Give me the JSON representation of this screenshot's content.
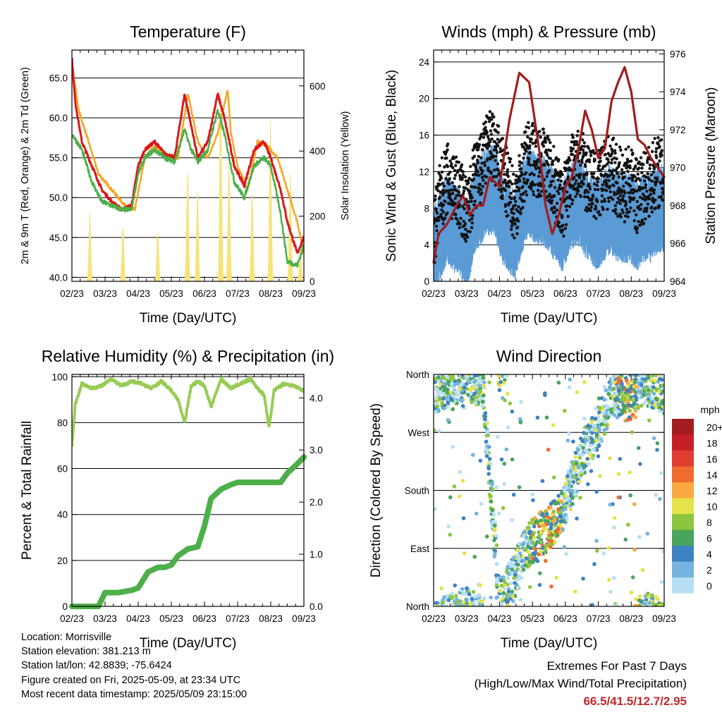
{
  "chart_data": [
    {
      "type": "line",
      "title": "Temperature (F)",
      "xlabel": "Time (Day/UTC)",
      "ylabel": "2m & 9m T (Red, Orange) & 2m Td (Green)",
      "ylabel_right": "Solar Insolation (Yellow)",
      "x_ticks": [
        "02/23",
        "03/23",
        "04/23",
        "05/23",
        "06/23",
        "07/23",
        "08/23",
        "09/23"
      ],
      "y_ticks": [
        "40.0",
        "45.0",
        "50.0",
        "55.0",
        "60.0",
        "65.0"
      ],
      "y2_ticks": [
        "0",
        "200",
        "400",
        "600"
      ],
      "ylim": [
        39.5,
        68.5
      ],
      "y2lim": [
        0,
        710
      ],
      "grid": "horizontal",
      "series": [
        {
          "color": "#f5a623",
          "x": [
            0,
            0.2,
            0.5,
            0.8,
            1.2,
            1.6,
            1.9,
            2.2,
            2.5,
            2.8,
            3.2,
            3.5,
            3.8,
            4.1,
            4.4,
            4.7,
            4.8,
            5.0,
            5.3,
            5.6,
            5.9,
            6.2,
            6.5,
            6.8,
            7.0
          ],
          "values": [
            67,
            61,
            57,
            53,
            51,
            49,
            48.5,
            55,
            56.5,
            55.5,
            55,
            63,
            57,
            55,
            58,
            63.5,
            58,
            54,
            51,
            57,
            56.5,
            55,
            51,
            47,
            43
          ]
        },
        {
          "color": "#d7191c",
          "x": [
            0,
            0.1,
            0.3,
            0.6,
            0.9,
            1.2,
            1.5,
            1.8,
            2.0,
            2.2,
            2.5,
            2.8,
            3.1,
            3.4,
            3.6,
            3.8,
            4.1,
            4.4,
            4.6,
            4.9,
            5.2,
            5.5,
            5.8,
            6.0,
            6.3,
            6.5,
            6.8,
            7.0
          ],
          "values": [
            67.5,
            62,
            57,
            54,
            51,
            49.5,
            48.5,
            49,
            54,
            56,
            57,
            55.5,
            55,
            63,
            59,
            55,
            57,
            63,
            60,
            54,
            51.5,
            56,
            57,
            55,
            51,
            47,
            43,
            45
          ]
        },
        {
          "color": "#4daf4a",
          "x": [
            0,
            0.3,
            0.6,
            0.9,
            1.2,
            1.5,
            1.8,
            2.0,
            2.2,
            2.5,
            2.8,
            3.1,
            3.4,
            3.6,
            3.8,
            4.1,
            4.4,
            4.6,
            4.9,
            5.2,
            5.5,
            5.8,
            6.0,
            6.3,
            6.5,
            6.8,
            7.0
          ],
          "values": [
            58,
            56,
            52,
            49.5,
            49,
            48.5,
            48.5,
            53,
            55,
            56,
            55,
            54.5,
            58.5,
            56,
            54.5,
            56,
            61,
            58,
            52,
            50,
            54,
            55,
            54,
            48,
            42,
            41.5,
            44
          ]
        }
      ],
      "insolation": {
        "color": "#f6e37a",
        "peaks_day": [
          0.5,
          1.5,
          2.55,
          3.45,
          3.75,
          4.45,
          4.7,
          5.4,
          5.95,
          6.55,
          6.85
        ],
        "peaks_value": [
          230,
          200,
          180,
          400,
          300,
          700,
          450,
          300,
          560,
          400,
          120
        ]
      }
    },
    {
      "type": "scatter",
      "title": "Winds (mph) & Pressure (mb)",
      "xlabel": "Time (Day/UTC)",
      "ylabel": "Sonic Wind & Gust (Blue, Black)",
      "ylabel_right": "Station Pressure (Maroon)",
      "x_ticks": [
        "02/23",
        "03/23",
        "04/23",
        "05/23",
        "06/23",
        "07/23",
        "08/23",
        "09/23"
      ],
      "y_ticks": [
        "0",
        "4",
        "8",
        "12",
        "16",
        "20",
        "24"
      ],
      "y2_ticks": [
        "964",
        "966",
        "968",
        "970",
        "972",
        "974",
        "976"
      ],
      "ylim": [
        0,
        25.3
      ],
      "y2lim": [
        964,
        976.2
      ],
      "grid": "horizontal",
      "pressure": {
        "color": "#a31d1d",
        "x": [
          0,
          0.15,
          0.4,
          0.7,
          0.9,
          1.1,
          1.3,
          1.5,
          1.7,
          2.0,
          2.3,
          2.6,
          2.9,
          3.2,
          3.4,
          3.6,
          3.8,
          4.0,
          4.2,
          4.4,
          4.6,
          4.8,
          5.0,
          5.2,
          5.4,
          5.6,
          5.8,
          6.0,
          6.2,
          6.4,
          6.6,
          6.8,
          7.0
        ],
        "values": [
          965,
          966.5,
          967,
          968,
          968.5,
          967.5,
          968,
          968,
          969.5,
          969,
          972.5,
          975,
          974.5,
          971,
          968,
          966.5,
          967.5,
          969,
          969.5,
          971,
          973,
          972,
          970.5,
          971,
          973.5,
          974.5,
          975.3,
          974,
          971.5,
          971.2,
          970.5,
          970,
          969.5
        ]
      },
      "wind_color": "#5b9bd5",
      "gust_color": "#111111",
      "wind_mean": [
        3,
        5,
        7,
        6,
        5,
        4,
        8,
        9,
        10,
        10,
        7,
        6,
        5,
        8,
        10,
        9,
        9,
        8,
        7,
        6,
        8,
        9,
        8,
        7,
        6,
        7,
        8,
        7,
        7,
        7,
        6,
        7,
        7,
        8,
        8
      ],
      "gust_mean": [
        4,
        8,
        10,
        9,
        8,
        6,
        10,
        11,
        14,
        13,
        11,
        9,
        7,
        10,
        13,
        12,
        12,
        11,
        9,
        7,
        10,
        12,
        11,
        10,
        9,
        10,
        11,
        10,
        9,
        10,
        8,
        9,
        10,
        11,
        10
      ]
    },
    {
      "type": "line",
      "title": "Relative Humidity (%) & Precipitation (in)",
      "xlabel": "Time (Day/UTC)",
      "ylabel": "Percent & Total Rainfall",
      "x_ticks": [
        "02/23",
        "03/23",
        "04/23",
        "05/23",
        "06/23",
        "07/23",
        "08/23",
        "09/23"
      ],
      "y_ticks": [
        "0",
        "20",
        "40",
        "60",
        "80",
        "100"
      ],
      "y2_ticks": [
        "0.0",
        "1.0",
        "2.0",
        "3.0",
        "4.0"
      ],
      "ylim": [
        0,
        101
      ],
      "y2lim": [
        0,
        4.45
      ],
      "grid": "horizontal",
      "series": [
        {
          "color": "#98cc56",
          "x": [
            0,
            0.1,
            0.3,
            0.6,
            0.9,
            1.2,
            1.5,
            1.8,
            2.1,
            2.4,
            2.7,
            3.0,
            3.2,
            3.4,
            3.6,
            3.8,
            4.0,
            4.2,
            4.5,
            4.8,
            5.1,
            5.4,
            5.6,
            5.8,
            5.95,
            6.1,
            6.4,
            6.7,
            7.0
          ],
          "values": [
            70,
            88,
            97,
            95,
            96,
            99,
            96,
            98,
            97,
            95,
            98,
            94,
            90,
            80,
            96,
            98,
            96,
            87,
            99,
            95,
            97,
            99,
            95,
            92,
            78,
            94,
            97,
            96,
            94
          ]
        },
        {
          "color": "#4daf4a",
          "x": [
            0,
            0.6,
            0.8,
            1.0,
            1.4,
            1.6,
            1.8,
            2.0,
            2.3,
            2.6,
            2.8,
            3.0,
            3.2,
            3.5,
            3.8,
            4.0,
            4.2,
            4.5,
            4.8,
            5.0,
            5.5,
            6.0,
            6.3,
            6.5,
            6.8,
            7.0
          ],
          "values": [
            0,
            0,
            0,
            6,
            6,
            6.5,
            7,
            8,
            15,
            17,
            17,
            18,
            22,
            25,
            26,
            35,
            47,
            51,
            53,
            54,
            54,
            54,
            54,
            58,
            62,
            65
          ]
        }
      ]
    },
    {
      "type": "scatter",
      "title": "Wind Direction",
      "xlabel": "Time (Day/UTC)",
      "ylabel": "Direction (Colored By Speed)",
      "x_ticks": [
        "02/23",
        "03/23",
        "04/23",
        "05/23",
        "06/23",
        "07/23",
        "08/23",
        "09/23"
      ],
      "y_ticks": [
        "North",
        "East",
        "South",
        "West",
        "North"
      ],
      "ylim": [
        0,
        360
      ],
      "grid": "horizontal",
      "legend": {
        "title": "mph",
        "position": "right",
        "labels": [
          "20+",
          "18",
          "16",
          "14",
          "12",
          "10",
          "8",
          "6",
          "4",
          "2",
          "0"
        ],
        "colors": [
          "#a51c1f",
          "#c62026",
          "#e03c30",
          "#f26b2e",
          "#f9a940",
          "#e6e24a",
          "#8cc640",
          "#4aa45e",
          "#3e82c2",
          "#75b4e0",
          "#b7e0f5"
        ]
      },
      "direction_trend_x": [
        0,
        0.5,
        1.0,
        1.5,
        2.0,
        2.4,
        2.8,
        3.2,
        3.5,
        3.9,
        4.2,
        4.5,
        4.9,
        5.2,
        5.5,
        5.9,
        6.2,
        6.5,
        6.8,
        7.0
      ],
      "direction_trend_deg": [
        330,
        345,
        355,
        340,
        10,
        40,
        90,
        110,
        120,
        150,
        190,
        235,
        270,
        300,
        330,
        320,
        340,
        345,
        340,
        330
      ]
    }
  ],
  "info": {
    "location": "Location: Morrisville",
    "elevation": "Station elevation: 381.213 m",
    "latlon": "Station lat/lon: 42.8839; -75.6424",
    "created": "Figure created on Fri, 2025-05-09, at 23:34 UTC",
    "recent": "Most recent data timestamp: 2025/05/09 23:15:00"
  },
  "extremes": {
    "line1": "Extremes For Past 7 Days",
    "line2": "(High/Low/Max Wind/Total Precipitation)",
    "values": "66.5/41.5/12.7/2.95"
  }
}
